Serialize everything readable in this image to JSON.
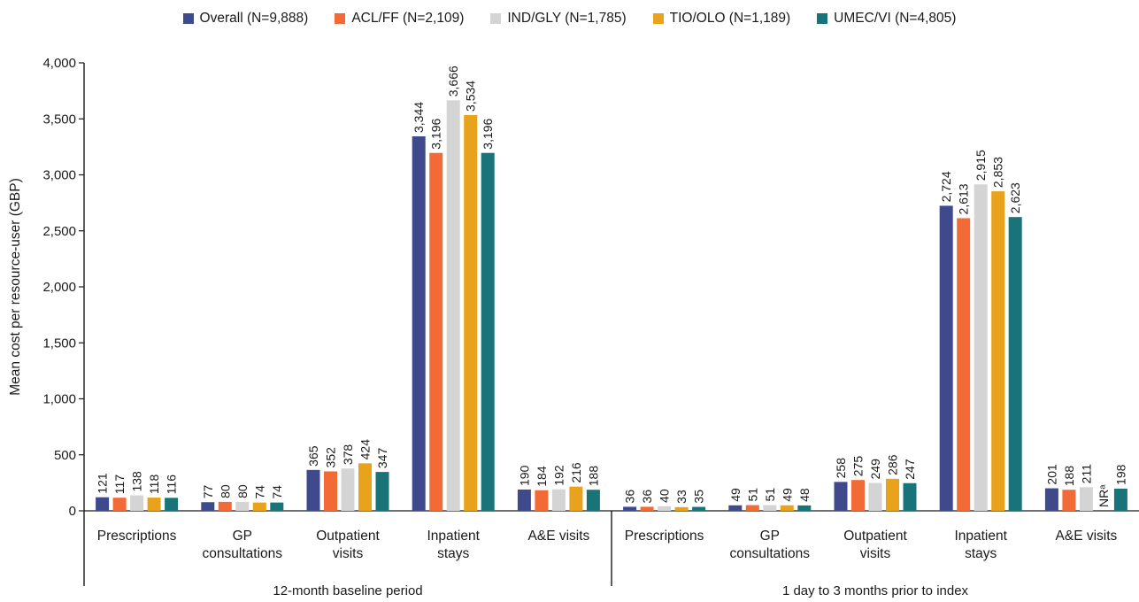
{
  "chart_data": {
    "type": "bar",
    "ylabel": "Mean cost per resource-user (GBP)",
    "xlabel": "",
    "ylim": [
      0,
      4000
    ],
    "yticks": [
      "0",
      "500",
      "1,000",
      "1,500",
      "2,000",
      "2,500",
      "3,000",
      "3,500",
      "4,000"
    ],
    "grid": false,
    "legend_position": "top",
    "series": [
      {
        "name": "Overall (N=9,888)",
        "color": "#3f4a8c"
      },
      {
        "name": "ACL/FF (N=2,109)",
        "color": "#f26a36"
      },
      {
        "name": "IND/GLY (N=1,785)",
        "color": "#d4d4d4"
      },
      {
        "name": "TIO/OLO (N=1,189)",
        "color": "#e9a21b"
      },
      {
        "name": "UMEC/VI (N=4,805)",
        "color": "#19747a"
      }
    ],
    "panels": [
      {
        "label": "12-month baseline period",
        "categories": [
          {
            "label": [
              "Prescriptions"
            ],
            "values": [
              121,
              117,
              138,
              118,
              116
            ],
            "value_labels": [
              "121",
              "117",
              "138",
              "118",
              "116"
            ]
          },
          {
            "label": [
              "GP",
              "consultations"
            ],
            "values": [
              77,
              80,
              80,
              74,
              74
            ],
            "value_labels": [
              "77",
              "80",
              "80",
              "74",
              "74"
            ]
          },
          {
            "label": [
              "Outpatient",
              "visits"
            ],
            "values": [
              365,
              352,
              378,
              424,
              347
            ],
            "value_labels": [
              "365",
              "352",
              "378",
              "424",
              "347"
            ]
          },
          {
            "label": [
              "Inpatient",
              "stays"
            ],
            "values": [
              3344,
              3196,
              3666,
              3534,
              3196
            ],
            "value_labels": [
              "3,344",
              "3,196",
              "3,666",
              "3,534",
              "3,196"
            ]
          },
          {
            "label": [
              "A&E visits"
            ],
            "values": [
              190,
              184,
              192,
              216,
              188
            ],
            "value_labels": [
              "190",
              "184",
              "192",
              "216",
              "188"
            ]
          }
        ]
      },
      {
        "label": "1 day to 3 months prior to index",
        "categories": [
          {
            "label": [
              "Prescriptions"
            ],
            "values": [
              36,
              36,
              40,
              33,
              35
            ],
            "value_labels": [
              "36",
              "36",
              "40",
              "33",
              "35"
            ]
          },
          {
            "label": [
              "GP",
              "consultations"
            ],
            "values": [
              49,
              51,
              51,
              49,
              48
            ],
            "value_labels": [
              "49",
              "51",
              "51",
              "49",
              "48"
            ]
          },
          {
            "label": [
              "Outpatient",
              "visits"
            ],
            "values": [
              258,
              275,
              249,
              286,
              247
            ],
            "value_labels": [
              "258",
              "275",
              "249",
              "286",
              "247"
            ]
          },
          {
            "label": [
              "Inpatient",
              "stays"
            ],
            "values": [
              2724,
              2613,
              2915,
              2853,
              2623
            ],
            "value_labels": [
              "2,724",
              "2,613",
              "2,915",
              "2,853",
              "2,623"
            ]
          },
          {
            "label": [
              "A&E visits"
            ],
            "values": [
              201,
              188,
              211,
              null,
              198
            ],
            "value_labels": [
              "201",
              "188",
              "211",
              "NRᵃ",
              "198"
            ]
          }
        ]
      }
    ]
  }
}
